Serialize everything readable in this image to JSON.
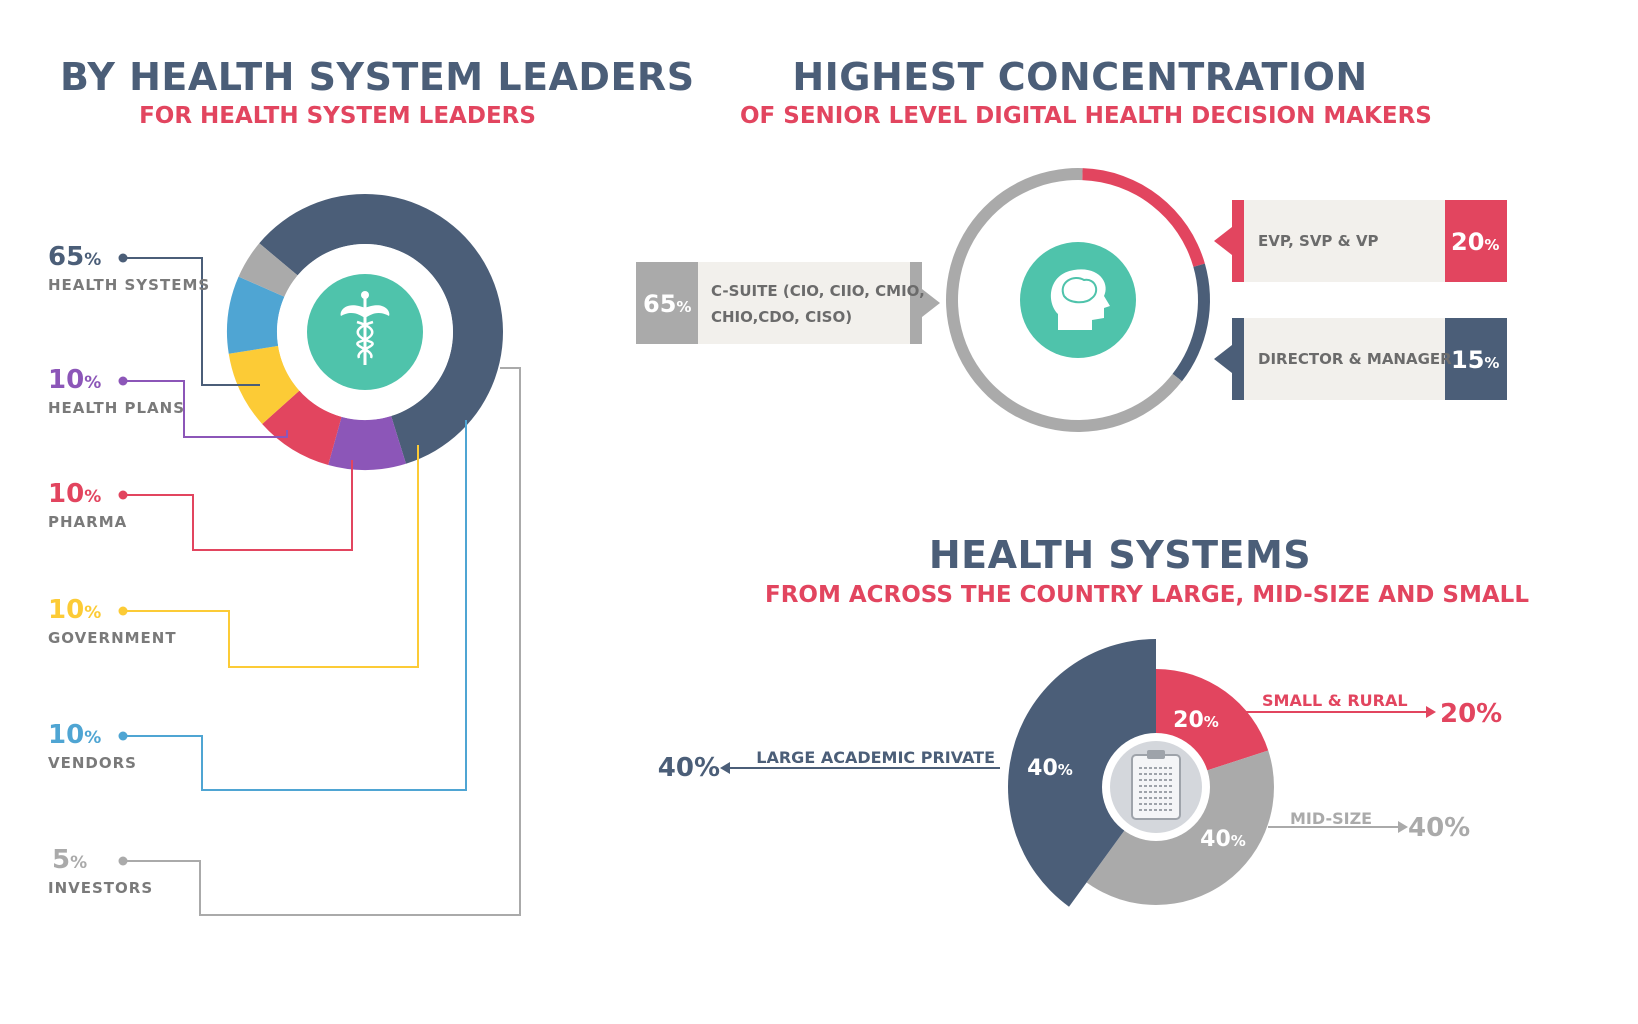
{
  "colors": {
    "navy": "#4b5e78",
    "red": "#e2455f",
    "purple": "#8c56b8",
    "yellow": "#fccb36",
    "blue": "#4fa5d3",
    "gray": "#aaaaaa",
    "teal": "#4fc3ab",
    "light_box": "#f2f0ec"
  },
  "section1": {
    "title": "BY HEALTH SYSTEM LEADERS",
    "subtitle": "FOR HEALTH SYSTEM LEADERS",
    "center_icon": "caduceus-icon"
  },
  "section2": {
    "title": "HIGHEST CONCENTRATION",
    "subtitle": "OF SENIOR LEVEL DIGITAL HEALTH DECISION MAKERS",
    "center_icon": "brain-head-icon"
  },
  "section3": {
    "title": "HEALTH SYSTEMS",
    "subtitle": "FROM ACROSS THE COUNTRY LARGE, MID-SIZE AND SMALL",
    "center_icon": "clipboard-icon"
  },
  "chart_data": [
    {
      "type": "pie",
      "variant": "donut",
      "series": [
        {
          "name": "HEALTH SYSTEMS",
          "value": 65,
          "label": "65",
          "color": "#4b5e78"
        },
        {
          "name": "HEALTH PLANS",
          "value": 10,
          "label": "10",
          "color": "#8c56b8"
        },
        {
          "name": "PHARMA",
          "value": 10,
          "label": "10",
          "color": "#e2455f"
        },
        {
          "name": "GOVERNMENT",
          "value": 10,
          "label": "10",
          "color": "#fccb36"
        },
        {
          "name": "VENDORS",
          "value": 10,
          "label": "10",
          "color": "#4fa5d3"
        },
        {
          "name": "INVESTORS",
          "value": 5,
          "label": "5",
          "color": "#aaaaaa"
        }
      ],
      "unit": "%"
    },
    {
      "type": "pie",
      "variant": "ring",
      "series": [
        {
          "name": "EVP, SVP & VP",
          "value": 20,
          "label": "20",
          "color": "#e2455f"
        },
        {
          "name": "DIRECTOR & MANAGER",
          "value": 15,
          "label": "15",
          "color": "#4b5e78"
        },
        {
          "name": "C-SUITE (CIO, CIIO, CMIO, CHIO,CDO, CISO)",
          "name_line1": "C-SUITE (CIO, CIIO, CMIO,",
          "name_line2": "CHIO,CDO, CISO)",
          "value": 65,
          "label": "65",
          "color": "#aaaaaa"
        }
      ],
      "unit": "%"
    },
    {
      "type": "pie",
      "series": [
        {
          "name": "SMALL & RURAL",
          "value": 20,
          "label": "20",
          "color": "#e2455f"
        },
        {
          "name": "MID-SIZE",
          "value": 40,
          "label": "40",
          "color": "#aaaaaa"
        },
        {
          "name": "LARGE ACADEMIC  PRIVATE",
          "value": 40,
          "label": "40",
          "color": "#4b5e78"
        }
      ],
      "unit": "%",
      "outer_labels": [
        "20%",
        "40%",
        "40%"
      ]
    }
  ]
}
